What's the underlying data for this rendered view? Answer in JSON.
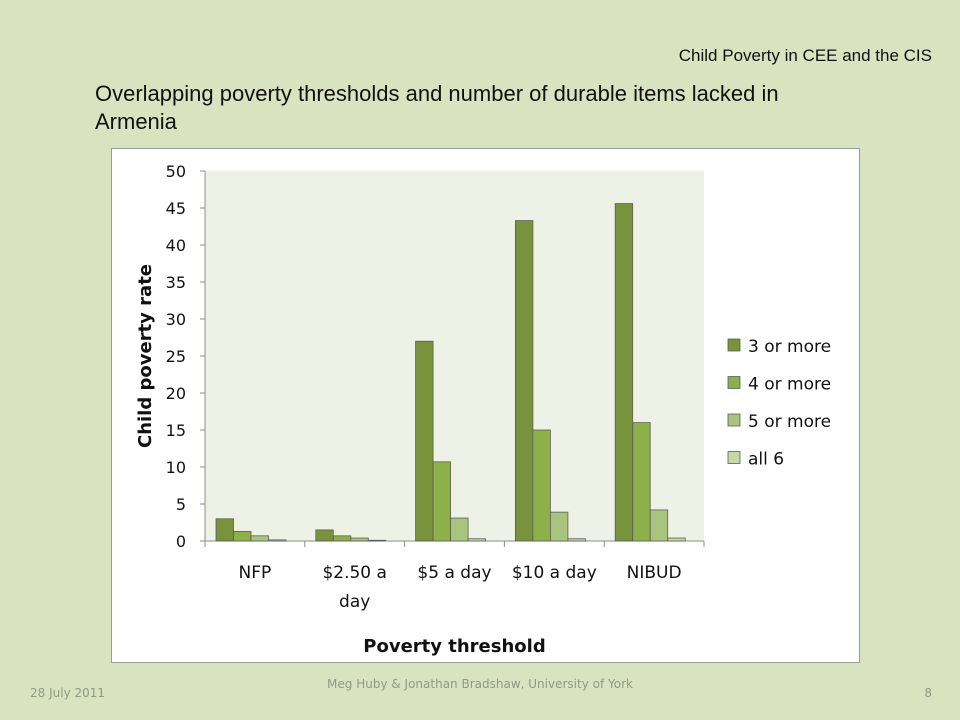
{
  "header": {
    "right_title": "Child Poverty in CEE and the CIS"
  },
  "slide": {
    "title": "Overlapping poverty thresholds and number of durable items lacked in Armenia"
  },
  "footer": {
    "date": "28 July 2011",
    "credit": "Meg Huby & Jonathan Bradshaw, University of York",
    "page": "8"
  },
  "chart_data": {
    "type": "bar",
    "title": "",
    "xlabel": "Poverty threshold",
    "ylabel": "Child poverty rate",
    "ylim": [
      0,
      50
    ],
    "yticks": [
      0,
      5,
      10,
      15,
      20,
      25,
      30,
      35,
      40,
      45,
      50
    ],
    "categories": [
      "NFP",
      "$2.50 a day",
      "$5 a day",
      "$10 a day",
      "NIBUD"
    ],
    "series": [
      {
        "name": "3 or more",
        "color": "#77933c",
        "values": [
          3.0,
          1.5,
          27.0,
          43.3,
          45.6
        ]
      },
      {
        "name": "4 or more",
        "color": "#8db04a",
        "values": [
          1.3,
          0.7,
          10.7,
          15.0,
          16.0
        ]
      },
      {
        "name": "5 or more",
        "color": "#a9c47f",
        "values": [
          0.7,
          0.4,
          3.1,
          3.9,
          4.2
        ]
      },
      {
        "name": "all 6",
        "color": "#c4d9a4",
        "values": [
          0.15,
          0.1,
          0.3,
          0.3,
          0.4
        ]
      }
    ],
    "grid": false,
    "legend_position": "right",
    "plot_background": "#eef2e6"
  }
}
